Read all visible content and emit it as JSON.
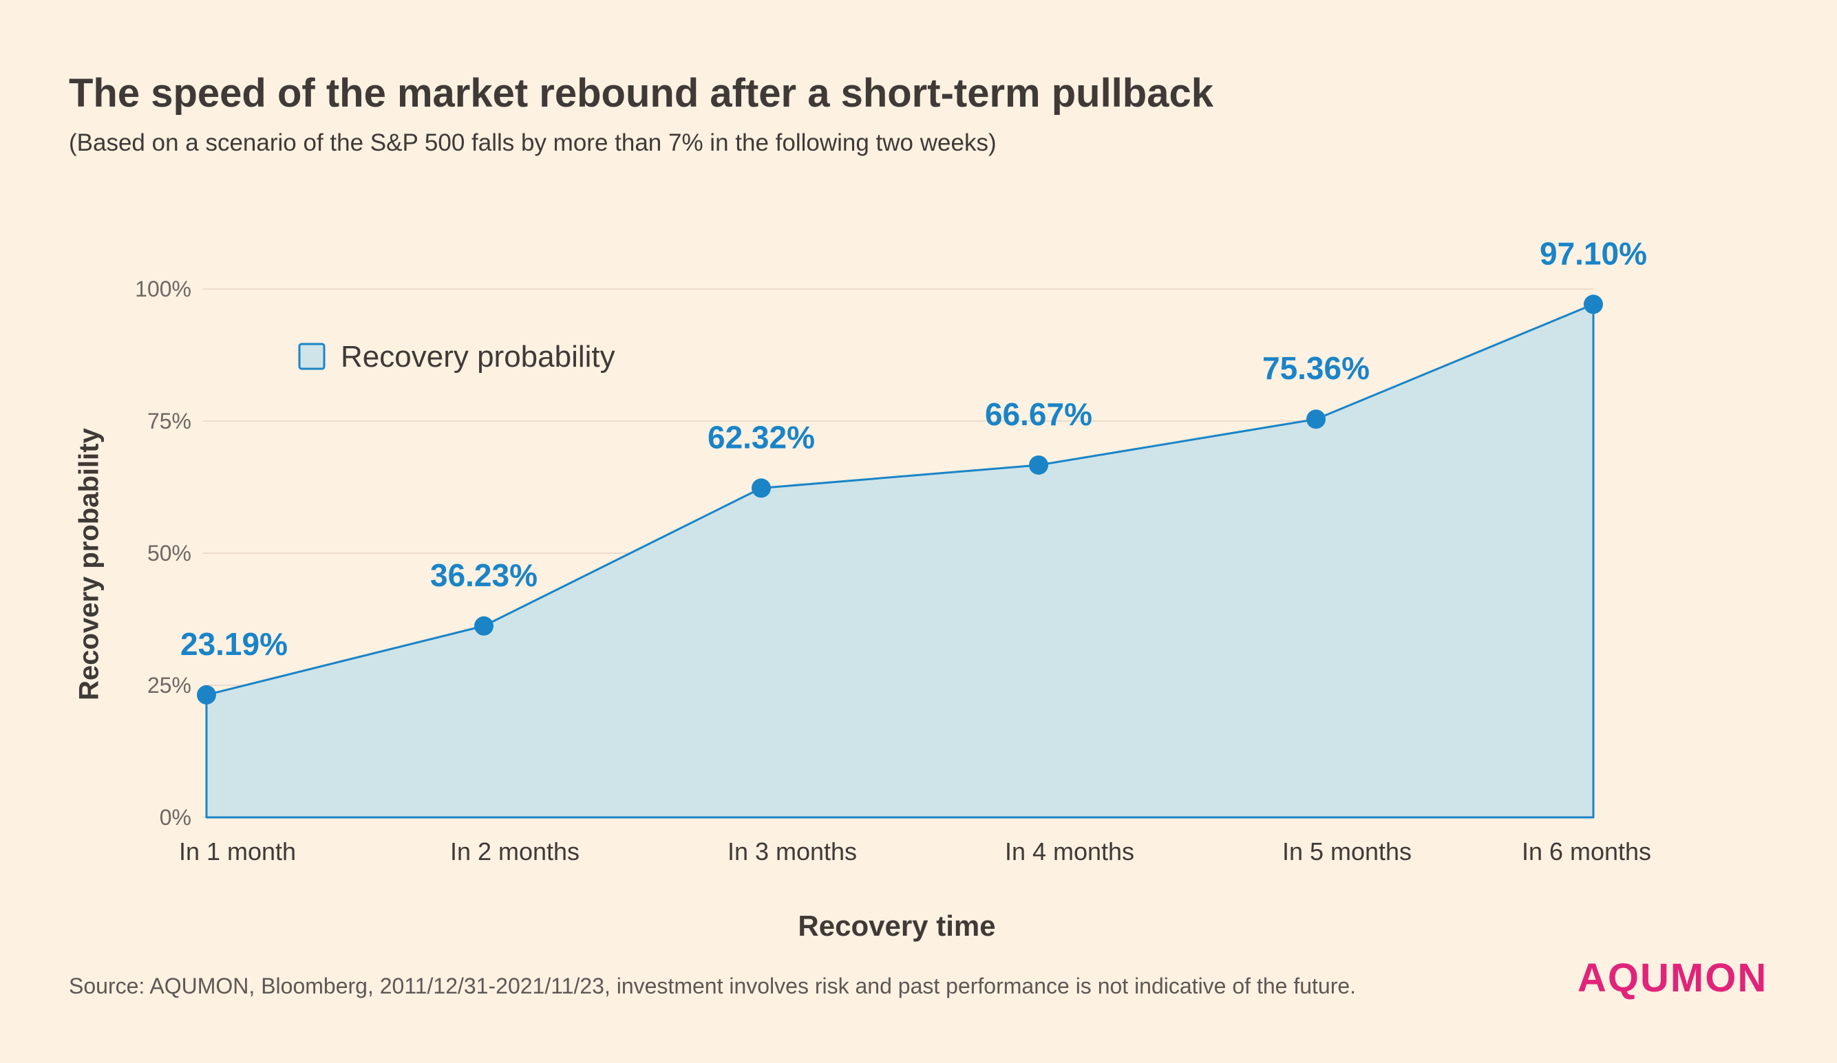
{
  "header": {
    "title": "The speed of the market rebound after a short-term pullback",
    "subtitle": "(Based on a scenario of the S&P 500 falls by more than 7% in the following two weeks)"
  },
  "footer": {
    "source": "Source: AQUMON, Bloomberg, 2011/12/31-2021/11/23, investment involves risk and past performance is not indicative of the future.",
    "brand": "AQUMON"
  },
  "chart_data": {
    "type": "area",
    "title": "The speed of the market rebound after a short-term pullback",
    "subtitle": "(Based on a scenario of the S&P 500 falls by more than 7% in the following two weeks)",
    "xlabel": "Recovery time",
    "ylabel": "Recovery probability",
    "categories": [
      "In 1 month",
      "In 2 months",
      "In 3 months",
      "In 4 months",
      "In 5 months",
      "In 6 months"
    ],
    "series": [
      {
        "name": "Recovery probability",
        "values": [
          23.19,
          36.23,
          62.32,
          66.67,
          75.36,
          97.1
        ],
        "labels": [
          "23.19%",
          "36.23%",
          "62.32%",
          "66.67%",
          "75.36%",
          "97.10%"
        ]
      }
    ],
    "ylim": [
      0,
      100
    ],
    "yticks": [
      0,
      25,
      50,
      75,
      100
    ],
    "ytick_labels": [
      "0%",
      "25%",
      "50%",
      "75%",
      "100%"
    ],
    "grid": true,
    "legend": "top-left",
    "colors": {
      "line": "#1a84c7",
      "fill": "#cfe4e8",
      "grid": "#eddccb",
      "brand": "#e0247a",
      "background": "#fdf1e2"
    }
  }
}
